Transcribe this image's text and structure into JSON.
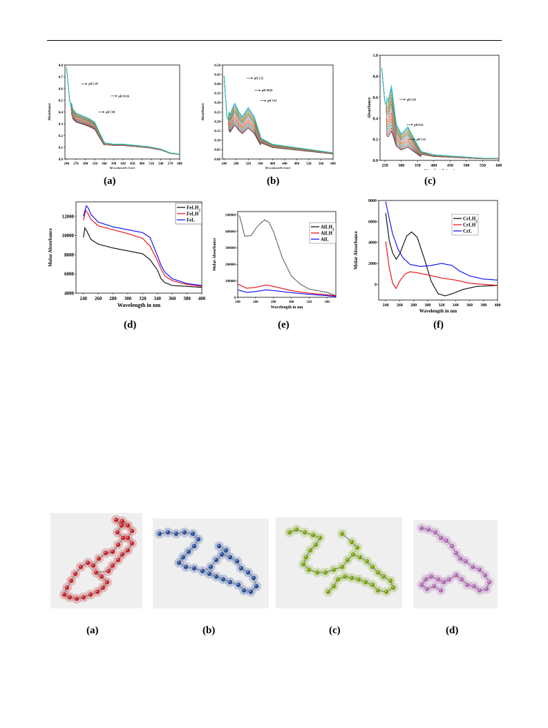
{
  "chart_data": [
    {
      "id": "a",
      "type": "line",
      "caption": "(a)",
      "ylabel": "Absorbance",
      "xlabel": "Wavelength (nm)",
      "xlim": [
        235,
        600
      ],
      "ylim": [
        0,
        0.8
      ],
      "xticks": [
        240,
        270,
        300,
        330,
        360,
        390,
        420,
        450,
        480,
        510,
        540,
        570,
        600
      ],
      "yticks": [
        0.0,
        0.1,
        0.2,
        0.3,
        0.4,
        0.5,
        0.6,
        0.7,
        0.8
      ],
      "annotations": [
        "pH 2.39",
        "pH 10.36",
        "pH 7.80"
      ],
      "series_style": "family",
      "base": {
        "x": [
          240,
          250,
          260,
          270,
          290,
          310,
          330,
          345,
          360,
          390,
          420,
          460,
          500,
          540,
          570,
          600
        ],
        "y": [
          0.78,
          0.5,
          0.38,
          0.35,
          0.33,
          0.31,
          0.28,
          0.2,
          0.13,
          0.12,
          0.12,
          0.11,
          0.1,
          0.08,
          0.05,
          0.04
        ]
      },
      "colors": [
        "#000000",
        "#e41a1c",
        "#377eb8",
        "#4daf4a",
        "#984ea3",
        "#ff7f00",
        "#a65628",
        "#f781bf",
        "#999999",
        "#1b9e77",
        "#d95f02",
        "#7570b3",
        "#66a61e",
        "#e6ab02",
        "#0080ff",
        "#00c0c0"
      ],
      "spread": [
        0.9,
        1.12
      ]
    },
    {
      "id": "b",
      "type": "line",
      "caption": "(b)",
      "ylabel": "Absorbance",
      "xlabel": "Wavelength (nm)",
      "xlim": [
        235,
        600
      ],
      "ylim": [
        0,
        0.5
      ],
      "xticks": [
        240,
        280,
        320,
        360,
        400,
        440,
        480,
        520,
        560,
        600
      ],
      "yticks": [
        0.0,
        0.05,
        0.1,
        0.15,
        0.2,
        0.25,
        0.3,
        0.35,
        0.4,
        0.45,
        0.5
      ],
      "annotations": [
        "pH 2.52",
        "pH 10.02",
        "pH 7.91"
      ],
      "series_style": "family",
      "base": {
        "x": [
          240,
          250,
          260,
          275,
          290,
          300,
          320,
          340,
          360,
          400,
          450,
          500,
          550,
          600
        ],
        "y": [
          0.44,
          0.22,
          0.19,
          0.24,
          0.2,
          0.18,
          0.22,
          0.18,
          0.1,
          0.07,
          0.06,
          0.05,
          0.04,
          0.03
        ]
      },
      "colors": [
        "#000000",
        "#e41a1c",
        "#377eb8",
        "#4daf4a",
        "#984ea3",
        "#ff7f00",
        "#a65628",
        "#f781bf",
        "#999999",
        "#1b9e77",
        "#d95f02",
        "#7570b3",
        "#66a61e",
        "#e6ab02",
        "#0080ff",
        "#00c0c0"
      ],
      "spread": [
        0.75,
        1.25
      ]
    },
    {
      "id": "c",
      "type": "line",
      "caption": "(c)",
      "ylabel": "Absorbance",
      "xlabel": "Wavelength (nm)",
      "xlim": [
        235,
        600
      ],
      "ylim": [
        0,
        1.0
      ],
      "xticks": [
        250,
        300,
        350,
        400,
        450,
        500,
        550,
        600
      ],
      "yticks": [
        0.0,
        0.2,
        0.4,
        0.6,
        0.8,
        1.0
      ],
      "annotations": [
        "pH 2.03",
        "pH 9.23",
        "pH 7.22"
      ],
      "series_style": "family",
      "base": {
        "x": [
          240,
          250,
          260,
          270,
          285,
          300,
          320,
          340,
          360,
          400,
          450,
          500,
          550,
          600
        ],
        "y": [
          0.88,
          0.55,
          0.5,
          0.62,
          0.3,
          0.22,
          0.28,
          0.18,
          0.08,
          0.05,
          0.04,
          0.03,
          0.02,
          0.02
        ]
      },
      "colors": [
        "#000000",
        "#e41a1c",
        "#377eb8",
        "#4daf4a",
        "#984ea3",
        "#ff7f00",
        "#a65628",
        "#f781bf",
        "#999999",
        "#1b9e77",
        "#d95f02",
        "#7570b3",
        "#66a61e",
        "#e6ab02",
        "#0080ff",
        "#00c0c0"
      ],
      "spread": [
        0.45,
        1.15
      ]
    },
    {
      "id": "d",
      "type": "line",
      "caption": "(d)",
      "ylabel": "Molar Absorbance",
      "xlabel": "Wavelength in nm",
      "xlim": [
        230,
        400
      ],
      "ylim": [
        4000,
        13500
      ],
      "xticks": [
        240,
        260,
        280,
        300,
        320,
        340,
        360,
        380,
        400
      ],
      "yticks": [
        4000,
        6000,
        8000,
        10000,
        12000
      ],
      "legend": "top-right",
      "series": [
        {
          "name": "FeLH2",
          "label_main": "FeLH",
          "label_sub": "2",
          "color": "#000000",
          "x": [
            240,
            242,
            245,
            250,
            260,
            280,
            300,
            320,
            330,
            340,
            345,
            350,
            360,
            380,
            400
          ],
          "y": [
            9800,
            10800,
            10400,
            9600,
            9100,
            8700,
            8400,
            8100,
            7500,
            6400,
            5500,
            5100,
            4800,
            4700,
            4600
          ]
        },
        {
          "name": "FeLH",
          "label_main": "FeLH",
          "label_sub": "",
          "color": "#e8000b",
          "x": [
            240,
            243,
            246,
            250,
            260,
            280,
            300,
            320,
            330,
            340,
            345,
            350,
            360,
            380,
            400
          ],
          "y": [
            11600,
            12600,
            12300,
            11700,
            11000,
            10600,
            10200,
            9700,
            8900,
            7400,
            6500,
            5800,
            5300,
            4900,
            4700
          ]
        },
        {
          "name": "FeL",
          "label_main": "FeL",
          "label_sub": "",
          "color": "#0000ff",
          "x": [
            240,
            244,
            247,
            250,
            260,
            280,
            300,
            320,
            330,
            340,
            345,
            350,
            360,
            380,
            400
          ],
          "y": [
            12000,
            13100,
            12800,
            12200,
            11400,
            10900,
            10600,
            10300,
            9800,
            7900,
            6900,
            6200,
            5500,
            5000,
            4800
          ]
        }
      ]
    },
    {
      "id": "e",
      "type": "line",
      "caption": "(e)",
      "ylabel": "Molar Absorbance",
      "xlabel": "Wavelength in nm",
      "xlim": [
        240,
        350
      ],
      "ylim": [
        0,
        520000
      ],
      "xticks": [
        240,
        260,
        280,
        300,
        320,
        340
      ],
      "yticks": [
        0,
        100000,
        200000,
        300000,
        400000,
        500000
      ],
      "legend": "top-right",
      "series": [
        {
          "name": "AlLH2",
          "label_main": "AlLH",
          "label_sub": "2",
          "color": "#000000",
          "x": [
            242,
            248,
            255,
            262,
            270,
            275,
            280,
            290,
            300,
            310,
            320,
            330,
            340,
            350
          ],
          "y": [
            495000,
            370000,
            375000,
            430000,
            470000,
            455000,
            400000,
            240000,
            130000,
            80000,
            50000,
            40000,
            30000,
            10000
          ]
        },
        {
          "name": "AlLH",
          "label_main": "AlLH",
          "label_sub": "",
          "color": "#e8000b",
          "x": [
            240,
            250,
            260,
            272,
            285,
            300,
            320,
            340,
            350
          ],
          "y": [
            80000,
            55000,
            60000,
            75000,
            60000,
            40000,
            25000,
            15000,
            10000
          ]
        },
        {
          "name": "AlL",
          "label_main": "AlL",
          "label_sub": "",
          "color": "#0000ff",
          "x": [
            240,
            250,
            260,
            272,
            285,
            300,
            320,
            340,
            350
          ],
          "y": [
            45000,
            30000,
            35000,
            45000,
            38000,
            28000,
            18000,
            10000,
            5000
          ]
        }
      ]
    },
    {
      "id": "f",
      "type": "line",
      "caption": "(f)",
      "ylabel": "Molar Absorbance",
      "xlabel": "Wavelength in nm",
      "xlim": [
        230,
        400
      ],
      "ylim": [
        -1500,
        8000
      ],
      "xticks": [
        240,
        260,
        280,
        300,
        320,
        340,
        360,
        380,
        400
      ],
      "yticks": [
        0,
        2000,
        4000,
        6000,
        8000
      ],
      "legend": "top-right",
      "series": [
        {
          "name": "CrLH2",
          "label_main": "CrLH",
          "label_sub": "2",
          "color": "#000000",
          "x": [
            240,
            245,
            250,
            255,
            260,
            270,
            277,
            285,
            295,
            305,
            315,
            325,
            335,
            350,
            370,
            400
          ],
          "y": [
            6800,
            4200,
            3000,
            2400,
            2900,
            4600,
            5000,
            4500,
            2500,
            300,
            -900,
            -1100,
            -900,
            -500,
            -200,
            -100
          ]
        },
        {
          "name": "CrLH",
          "label_main": "CrLH",
          "label_sub": "",
          "color": "#e8000b",
          "x": [
            240,
            245,
            250,
            255,
            260,
            268,
            275,
            285,
            300,
            320,
            340,
            360,
            380,
            400
          ],
          "y": [
            4100,
            1600,
            100,
            -400,
            300,
            1000,
            1200,
            1100,
            900,
            600,
            400,
            100,
            0,
            -100
          ]
        },
        {
          "name": "CrL",
          "label_main": "CrL",
          "label_sub": "",
          "color": "#0000ff",
          "x": [
            240,
            245,
            250,
            258,
            265,
            275,
            290,
            305,
            320,
            335,
            345,
            360,
            380,
            400
          ],
          "y": [
            7900,
            6300,
            4800,
            3300,
            2500,
            1900,
            1700,
            1800,
            2000,
            1800,
            1300,
            800,
            500,
            400
          ]
        }
      ]
    }
  ],
  "molecule_captions": [
    "(a)",
    "(b)",
    "(c)",
    "(d)"
  ],
  "molecule_colors": [
    "#c0282d",
    "#2a4f9a",
    "#7aa315",
    "#b06ab5"
  ]
}
